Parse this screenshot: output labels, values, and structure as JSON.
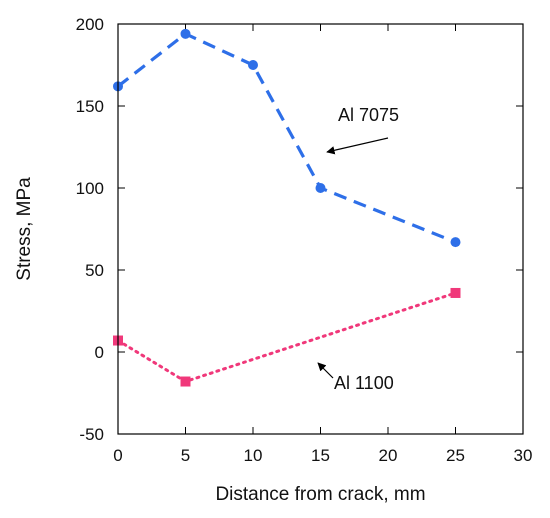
{
  "chart_data": {
    "type": "line",
    "xlabel": "Distance from crack, mm",
    "ylabel": "Stress, MPa",
    "xlim": [
      0,
      30
    ],
    "ylim": [
      -50,
      200
    ],
    "xticks": [
      0,
      5,
      10,
      15,
      20,
      25,
      30
    ],
    "yticks": [
      -50,
      0,
      50,
      100,
      150,
      200
    ],
    "grid": false,
    "series": [
      {
        "name": "Al 7075",
        "x": [
          0,
          5,
          10,
          15,
          25
        ],
        "y": [
          162,
          194,
          175,
          100,
          67
        ],
        "color": "#2E6FE8",
        "line_style": "dashed",
        "marker": "circle"
      },
      {
        "name": "Al 1100",
        "x": [
          0,
          5,
          25
        ],
        "y": [
          7,
          -18,
          36
        ],
        "color": "#F0387A",
        "line_style": "dotted",
        "marker": "square"
      }
    ],
    "annotations": [
      {
        "text": "Al 7075",
        "arrow_to": [
          14.5,
          125
        ]
      },
      {
        "text": "Al 1100",
        "arrow_to": [
          13.5,
          -2
        ]
      }
    ]
  }
}
